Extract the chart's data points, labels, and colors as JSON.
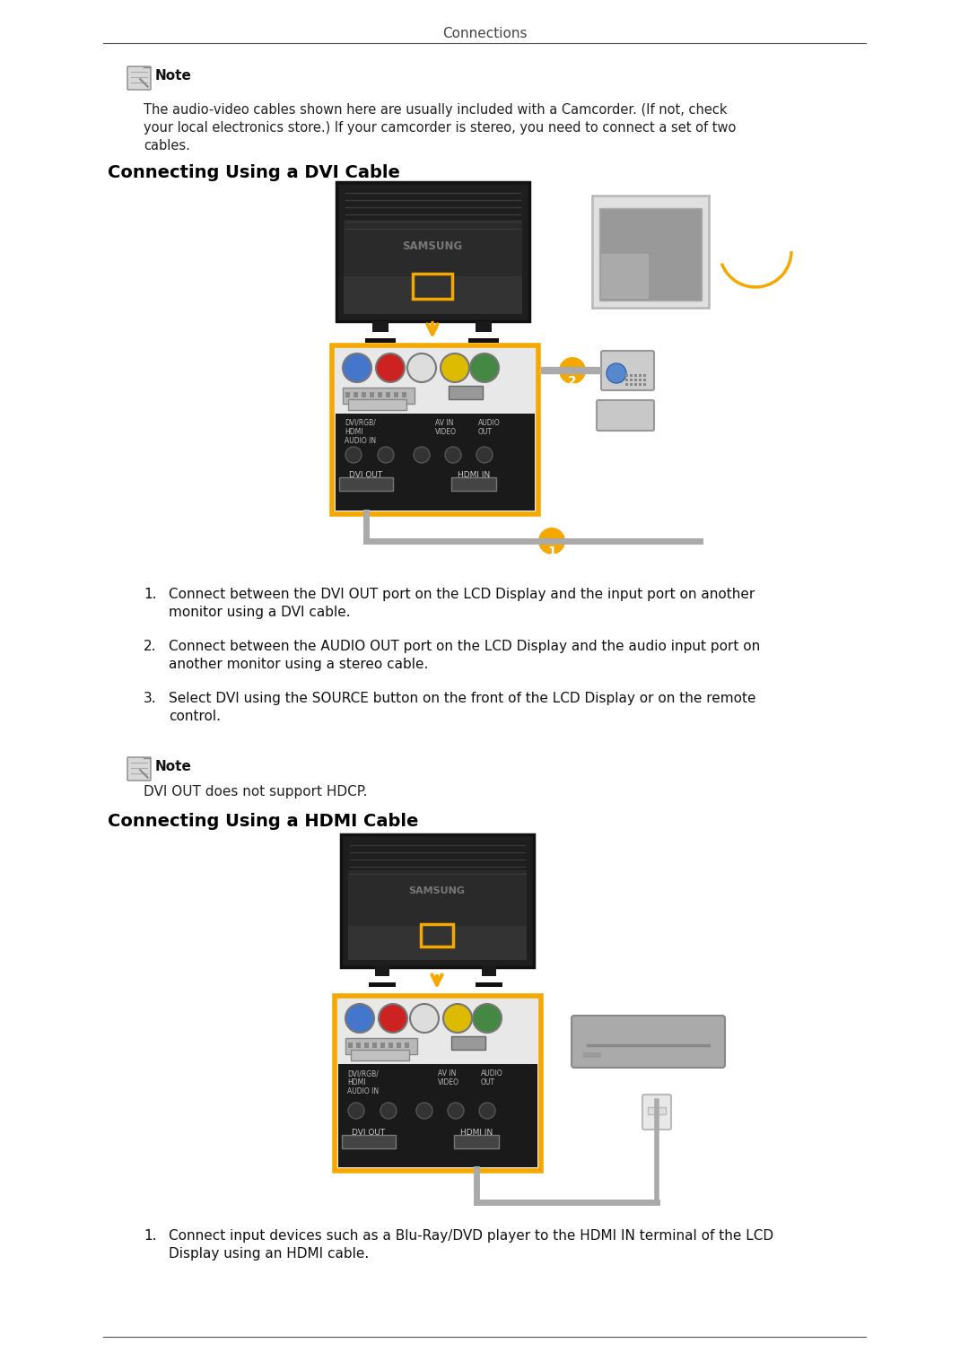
{
  "page_title": "Connections",
  "bg_color": "#ffffff",
  "text_color": "#000000",
  "title_line_color": "#555555",
  "note_text_lines": [
    "The audio-video cables shown here are usually included with a Camcorder. (If not, check",
    "your local electronics store.) If your camcorder is stereo, you need to connect a set of two",
    "cables."
  ],
  "section1_title": "Connecting Using a DVI Cable",
  "section1_steps": [
    [
      "Connect between the DVI OUT port on the LCD Display and the input port on another",
      "monitor using a DVI cable."
    ],
    [
      "Connect between the AUDIO OUT port on the LCD Display and the audio input port on",
      "another monitor using a stereo cable."
    ],
    [
      "Select DVI using the SOURCE button on the front of the LCD Display or on the remote",
      "control."
    ]
  ],
  "section1_note": "DVI OUT does not support HDCP.",
  "section2_title": "Connecting Using a HDMI Cable",
  "section2_steps": [
    [
      "Connect input devices such as a Blu-Ray/DVD player to the HDMI IN terminal of the LCD",
      "Display using an HDMI cable."
    ]
  ],
  "footer_line_color": "#555555",
  "orange_color": "#F5A800",
  "circle_colors": [
    "#4477cc",
    "#cc2222",
    "#dddddd",
    "#ddbb00",
    "#448844"
  ],
  "tv_body_color": "#1e1e1e",
  "tv_edge_color": "#111111",
  "panel_bg_color": "#e8e8e8",
  "panel_black_color": "#1a1a1a",
  "monitor_border_color": "#bbbbbb",
  "monitor_screen_color": "#999999",
  "bluray_color": "#aaaaaa",
  "cable_color": "#aaaaaa",
  "connector_color": "#cccccc"
}
